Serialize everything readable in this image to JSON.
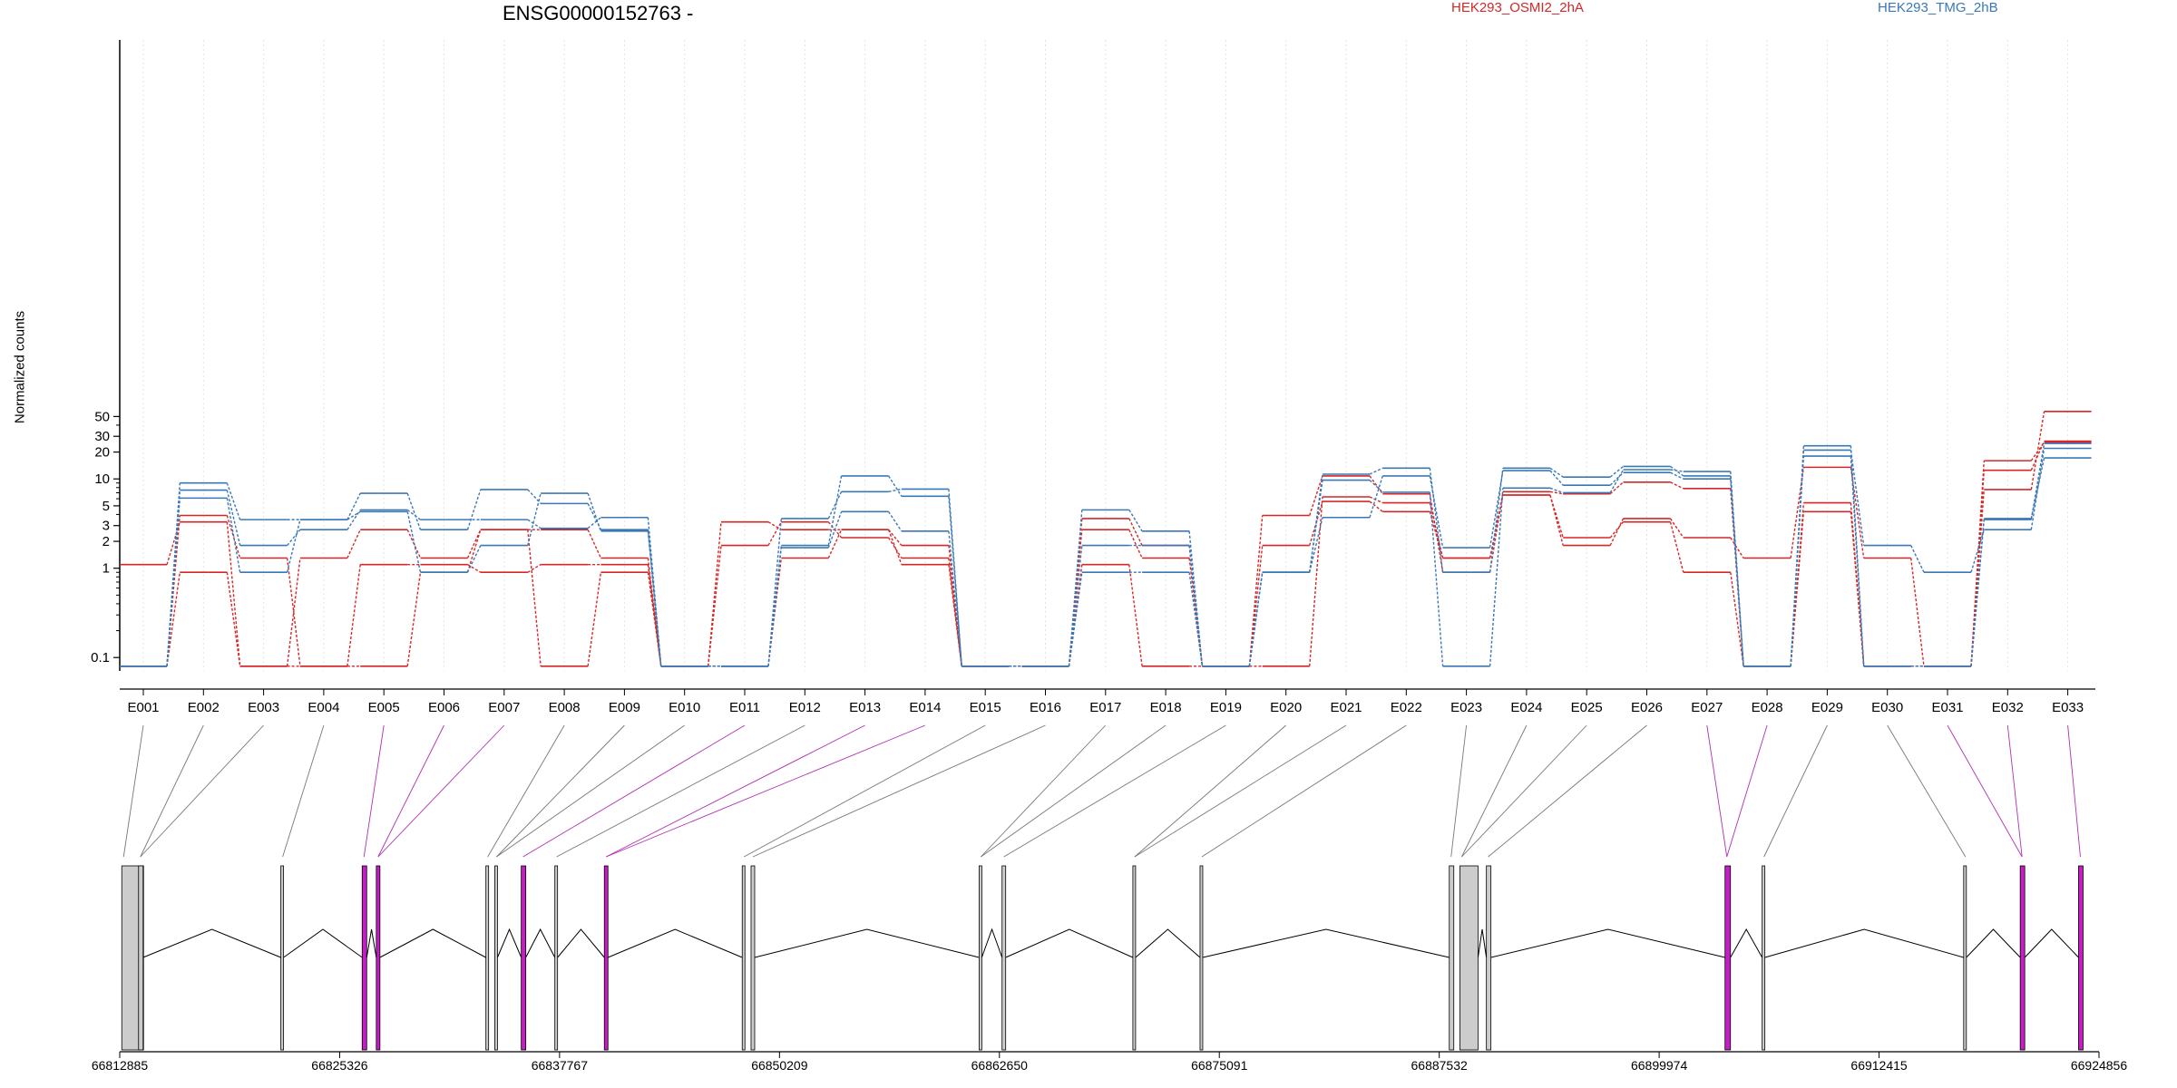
{
  "chart_data": {
    "type": "line",
    "title": "ENSG00000152763 -",
    "ylabel": "Normalized counts",
    "yscale": "log",
    "yticks": [
      0.1,
      1,
      2,
      3,
      5,
      10,
      20,
      30,
      50
    ],
    "ytick_labels": [
      "0.1",
      "1",
      "2",
      "3",
      "5",
      "10",
      "20",
      "30",
      "50"
    ],
    "categories": [
      "E001",
      "E002",
      "E003",
      "E004",
      "E005",
      "E006",
      "E007",
      "E008",
      "E009",
      "E010",
      "E011",
      "E012",
      "E013",
      "E014",
      "E015",
      "E016",
      "E017",
      "E018",
      "E019",
      "E020",
      "E021",
      "E022",
      "E023",
      "E024",
      "E025",
      "E026",
      "E027",
      "E028",
      "E029",
      "E030",
      "E031",
      "E032",
      "E033"
    ],
    "legend": [
      {
        "label": "HEK293_OSMI2_2hA",
        "color": "#d62728"
      },
      {
        "label": "HEK293_TMG_2hB",
        "color": "#3a78b5"
      }
    ],
    "series": [
      {
        "group": "HEK293_OSMI2_2hA",
        "color": "#d62728",
        "values": [
          1.1,
          3.3,
          0.08,
          1.3,
          2.7,
          1.3,
          2.7,
          2.7,
          1.3,
          0.08,
          1.8,
          3.3,
          2.2,
          1.3,
          0.08,
          0.08,
          3.6,
          1.8,
          0.08,
          1.8,
          5.6,
          4.3,
          1.3,
          6.6,
          1.8,
          3.6,
          2.2,
          1.3,
          13.5,
          1.3,
          0.08,
          7.6,
          57
        ]
      },
      {
        "group": "HEK293_OSMI2_2hA",
        "color": "#d62728",
        "values": [
          0.08,
          3.9,
          1.3,
          0.08,
          1.1,
          1.1,
          0.9,
          1.1,
          1.1,
          0.08,
          3.3,
          2.7,
          2.7,
          1.8,
          0.08,
          0.08,
          2.7,
          1.3,
          0.08,
          3.9,
          10.8,
          6.8,
          0.9,
          7.2,
          6.8,
          9.2,
          7.8,
          0.08,
          5.4,
          0.08,
          0.08,
          12.5,
          26.5
        ]
      },
      {
        "group": "HEK293_OSMI2_2hA",
        "color": "#d62728",
        "values": [
          0.08,
          0.9,
          0.08,
          0.08,
          0.08,
          0.9,
          2.7,
          0.08,
          0.9,
          0.08,
          0.08,
          1.3,
          2.7,
          1.1,
          0.08,
          0.08,
          1.1,
          0.08,
          0.08,
          0.08,
          6.3,
          5.4,
          1.3,
          6.6,
          2.2,
          3.3,
          0.9,
          0.08,
          4.3,
          0.08,
          0.08,
          16,
          25.8
        ]
      },
      {
        "group": "HEK293_TMG_2hB",
        "color": "#3a78b5",
        "values": [
          0.08,
          9.0,
          3.5,
          3.5,
          6.9,
          2.7,
          7.6,
          5.3,
          2.7,
          0.08,
          0.08,
          1.8,
          10.8,
          6.4,
          0.08,
          0.08,
          1.8,
          1.8,
          0.08,
          0.9,
          11.3,
          13.2,
          0.9,
          13.2,
          10.5,
          13.8,
          10.8,
          0.08,
          23.5,
          0.08,
          0.08,
          3.5,
          25
        ]
      },
      {
        "group": "HEK293_TMG_2hB",
        "color": "#3a78b5",
        "values": [
          0.08,
          7.5,
          1.8,
          2.7,
          4.5,
          3.5,
          3.5,
          2.8,
          3.7,
          0.08,
          0.08,
          1.7,
          4.3,
          2.6,
          0.08,
          0.08,
          4.5,
          2.6,
          0.08,
          0.9,
          3.7,
          10.8,
          1.7,
          12.4,
          8.5,
          11.8,
          10.0,
          0.08,
          21.0,
          1.8,
          0.9,
          2.7,
          22
        ]
      },
      {
        "group": "HEK293_TMG_2hB",
        "color": "#3a78b5",
        "values": [
          0.08,
          6.1,
          0.9,
          3.5,
          4.3,
          0.9,
          1.8,
          6.9,
          2.6,
          0.08,
          0.08,
          3.6,
          7.2,
          7.7,
          0.08,
          0.08,
          0.9,
          0.9,
          0.08,
          0.9,
          9.7,
          7.1,
          0.08,
          7.9,
          7.0,
          12.7,
          12.1,
          0.08,
          18.0,
          0.08,
          0.08,
          3.6,
          17.2
        ]
      }
    ],
    "gene_axis": {
      "ticks": [
        66812885,
        66825326,
        66837767,
        66850209,
        66862650,
        66875091,
        66887532,
        66899974,
        66912415,
        66924856
      ],
      "tick_labels": [
        "66812885",
        "66825326",
        "66837767",
        "66850209",
        "66862650",
        "66875091",
        "66887532",
        "66899974",
        "66912415",
        "66924856"
      ],
      "exon_color": "#cccccc",
      "highlight_color": "#c41ec4",
      "exon_positions": [
        66813000,
        66813950,
        66822000,
        66826600,
        66827400,
        66833600,
        66834100,
        66835600,
        66837500,
        66840300,
        66848100,
        66848600,
        66861500,
        66862800,
        66870200,
        66874000,
        66888100,
        66888700,
        66890200,
        66903700,
        66905800,
        66917200,
        66920400,
        66923700
      ],
      "exon_highlight": [
        false,
        false,
        false,
        true,
        true,
        false,
        false,
        true,
        false,
        true,
        false,
        false,
        false,
        false,
        false,
        false,
        false,
        false,
        false,
        true,
        false,
        false,
        true,
        true
      ]
    }
  }
}
